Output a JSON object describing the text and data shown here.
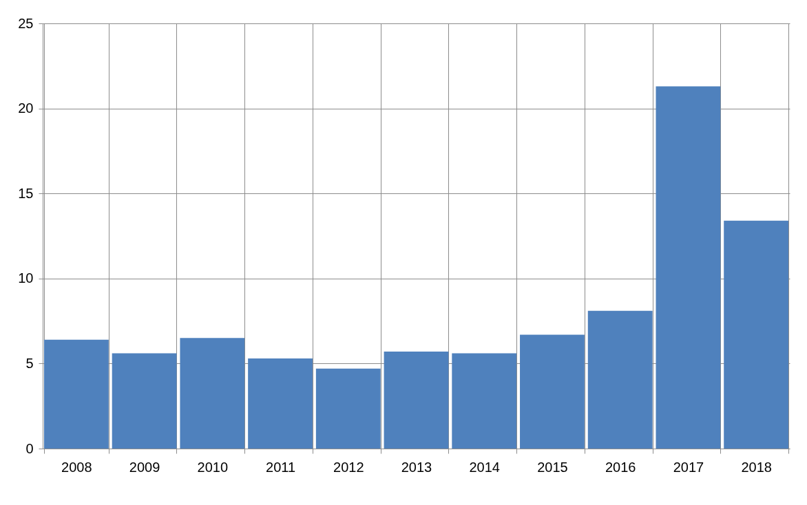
{
  "chart_data": {
    "type": "bar",
    "categories": [
      "2008",
      "2009",
      "2010",
      "2011",
      "2012",
      "2013",
      "2014",
      "2015",
      "2016",
      "2017",
      "2018"
    ],
    "values": [
      6.4,
      5.6,
      6.5,
      5.3,
      4.7,
      5.7,
      5.6,
      6.7,
      8.1,
      21.3,
      13.4
    ],
    "color": "#4f81bd",
    "ylim": [
      0,
      25
    ],
    "yticks": [
      0,
      5,
      10,
      15,
      20,
      25
    ],
    "grid": true
  }
}
